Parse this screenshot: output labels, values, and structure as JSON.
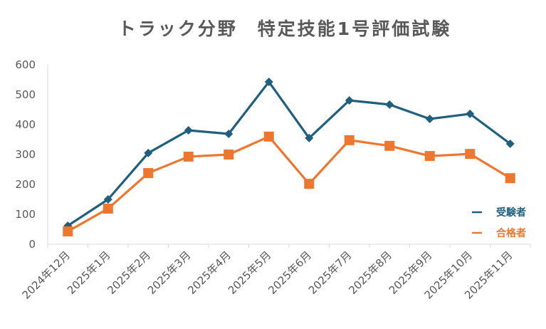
{
  "chart_data": {
    "type": "line",
    "title": "トラック分野　特定技能1号評価試験",
    "xlabel": "",
    "ylabel": "",
    "ylim": [
      0,
      600
    ],
    "yticks": [
      "0",
      "100",
      "200",
      "300",
      "400",
      "500",
      "600"
    ],
    "grid": false,
    "legend_position": "right",
    "categories": [
      "2024年12月",
      "2025年1月",
      "2025年2月",
      "2025年3月",
      "2025年4月",
      "2025年5月",
      "2025年6月",
      "2025年7月",
      "2025年8月",
      "2025年9月",
      "2025年10月",
      "2025年11月"
    ],
    "series": [
      {
        "name": "受験者",
        "color": "#1F5F7F",
        "marker": "diamond",
        "values": [
          62,
          150,
          305,
          381,
          369,
          543,
          355,
          481,
          467,
          419,
          436,
          336
        ]
      },
      {
        "name": "合格者",
        "color": "#EE7730",
        "marker": "square",
        "values": [
          43,
          119,
          238,
          293,
          300,
          360,
          202,
          348,
          329,
          295,
          302,
          221
        ]
      }
    ]
  }
}
